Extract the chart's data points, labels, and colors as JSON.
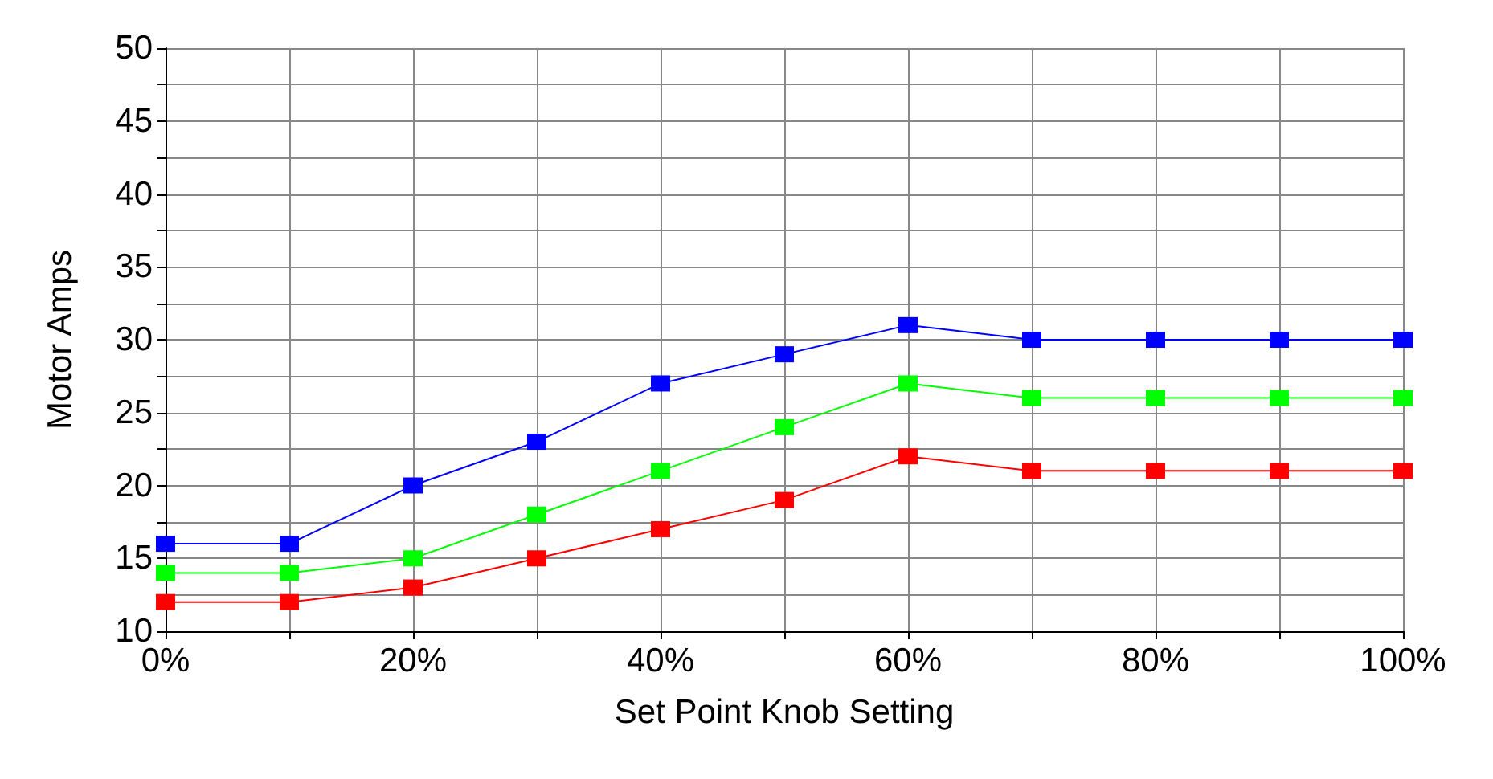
{
  "chart_data": {
    "type": "line",
    "xlabel": "Set Point Knob Setting",
    "ylabel": "Motor Amps",
    "x": [
      0,
      10,
      20,
      30,
      40,
      50,
      60,
      70,
      80,
      90,
      100
    ],
    "series": [
      {
        "color": "#0000ff",
        "values": [
          16,
          16,
          20,
          23,
          27,
          29,
          31,
          30,
          30,
          30,
          30
        ]
      },
      {
        "color": "#00ff00",
        "values": [
          14,
          14,
          15,
          18,
          21,
          24,
          27,
          26,
          26,
          26,
          26
        ]
      },
      {
        "color": "#ff0000",
        "values": [
          12,
          12,
          13,
          15,
          17,
          19,
          22,
          21,
          21,
          21,
          21
        ]
      }
    ],
    "xlim": [
      0,
      100
    ],
    "xticks": [
      {
        "value": 0,
        "label": "0%"
      },
      {
        "value": 10,
        "label": null
      },
      {
        "value": 20,
        "label": "20%"
      },
      {
        "value": 30,
        "label": null
      },
      {
        "value": 40,
        "label": "40%"
      },
      {
        "value": 50,
        "label": null
      },
      {
        "value": 60,
        "label": "60%"
      },
      {
        "value": 70,
        "label": null
      },
      {
        "value": 80,
        "label": "80%"
      },
      {
        "value": 90,
        "label": null
      },
      {
        "value": 100,
        "label": "100%"
      }
    ],
    "ylim": [
      10,
      50
    ],
    "yticks": [
      10,
      {
        "value": 12.5,
        "label": null
      },
      15,
      {
        "value": 17.5,
        "label": null
      },
      20,
      {
        "value": 22.5,
        "label": null
      },
      25,
      {
        "value": 27.5,
        "label": null
      },
      30,
      {
        "value": 32.5,
        "label": null
      },
      35,
      {
        "value": 37.5,
        "label": null
      },
      40,
      {
        "value": 42.5,
        "label": null
      },
      45,
      {
        "value": 47.5,
        "label": null
      },
      50
    ],
    "grid": true,
    "marker": "square",
    "line_style": "solid"
  }
}
